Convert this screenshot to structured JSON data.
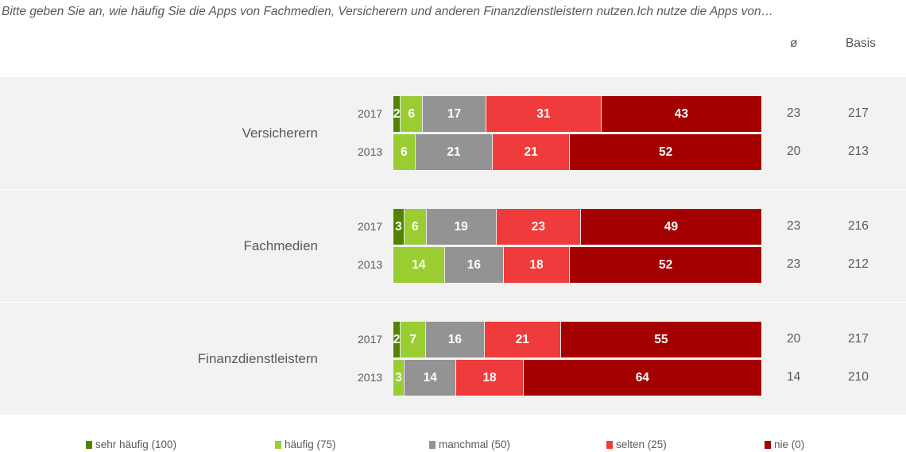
{
  "question": "Bitte geben Sie an, wie häufig Sie die Apps von Fachmedien, Versicherern und anderen Finanzdienstleistern nutzen.Ich nutze die Apps von…",
  "columns": {
    "avg": "ø",
    "basis": "Basis"
  },
  "chart_data": {
    "type": "bar",
    "orientation": "horizontal-stacked-100",
    "title": "Bitte geben Sie an, wie häufig Sie die Apps von Fachmedien, Versicherern und anderen Finanzdienstleistern nutzen.Ich nutze die Apps von…",
    "legend_position": "bottom",
    "series_names": [
      "sehr häufig (100)",
      "häufig (75)",
      "manchmal (50)",
      "selten (25)",
      "nie (0)"
    ],
    "series_colors": [
      "#548200",
      "#9acd32",
      "#939393",
      "#ef3b3b",
      "#a50000"
    ],
    "groups": [
      {
        "label": "Versicherern",
        "rows": [
          {
            "year": "2017",
            "values": [
              2,
              6,
              17,
              31,
              43
            ],
            "avg": "23",
            "basis": "217"
          },
          {
            "year": "2013",
            "values": [
              0,
              6,
              21,
              21,
              52
            ],
            "avg": "20",
            "basis": "213"
          }
        ]
      },
      {
        "label": "Fachmedien",
        "rows": [
          {
            "year": "2017",
            "values": [
              3,
              6,
              19,
              23,
              49
            ],
            "avg": "23",
            "basis": "216"
          },
          {
            "year": "2013",
            "values": [
              0,
              14,
              16,
              18,
              52
            ],
            "avg": "23",
            "basis": "212"
          }
        ]
      },
      {
        "label": "Finanzdienstleistern",
        "rows": [
          {
            "year": "2017",
            "values": [
              2,
              7,
              16,
              21,
              55
            ],
            "avg": "20",
            "basis": "217"
          },
          {
            "year": "2013",
            "values": [
              0,
              3,
              14,
              18,
              64
            ],
            "avg": "14",
            "basis": "210"
          }
        ]
      }
    ]
  }
}
